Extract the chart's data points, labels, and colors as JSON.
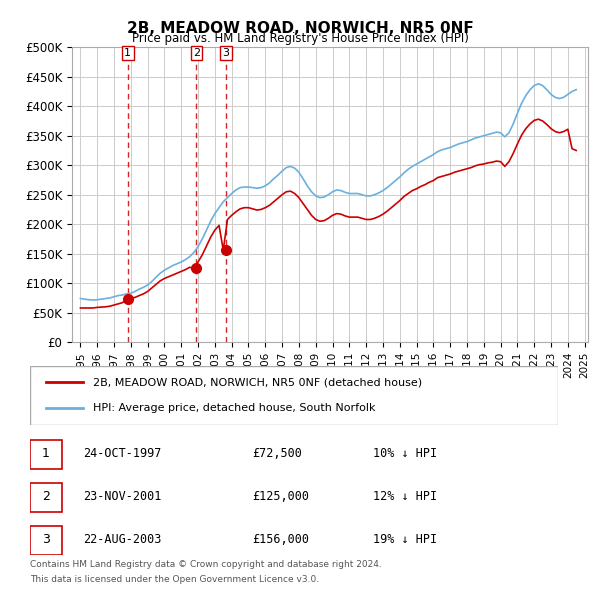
{
  "title": "2B, MEADOW ROAD, NORWICH, NR5 0NF",
  "subtitle": "Price paid vs. HM Land Registry's House Price Index (HPI)",
  "ylabel": "",
  "xlabel": "",
  "ylim": [
    0,
    500000
  ],
  "yticks": [
    0,
    50000,
    100000,
    150000,
    200000,
    250000,
    300000,
    350000,
    400000,
    450000,
    500000
  ],
  "ytick_labels": [
    "£0",
    "£50K",
    "£100K",
    "£150K",
    "£200K",
    "£250K",
    "£300K",
    "£350K",
    "£400K",
    "£450K",
    "£500K"
  ],
  "transactions": [
    {
      "num": 1,
      "date": "24-OCT-1997",
      "price": 72500,
      "year": 1997.82,
      "hpi_pct": "10% ↓ HPI"
    },
    {
      "num": 2,
      "date": "23-NOV-2001",
      "price": 125000,
      "year": 2001.9,
      "hpi_pct": "12% ↓ HPI"
    },
    {
      "num": 3,
      "date": "22-AUG-2003",
      "price": 156000,
      "year": 2003.65,
      "hpi_pct": "19% ↓ HPI"
    }
  ],
  "hpi_line_color": "#6ab0de",
  "property_line_color": "#cc0000",
  "marker_color": "#cc0000",
  "vline_color": "#cc0000",
  "grid_color": "#cccccc",
  "background_color": "#ffffff",
  "legend_label_property": "2B, MEADOW ROAD, NORWICH, NR5 0NF (detached house)",
  "legend_label_hpi": "HPI: Average price, detached house, South Norfolk",
  "footer1": "Contains HM Land Registry data © Crown copyright and database right 2024.",
  "footer2": "This data is licensed under the Open Government Licence v3.0.",
  "hpi_data_x": [
    1995.0,
    1995.25,
    1995.5,
    1995.75,
    1996.0,
    1996.25,
    1996.5,
    1996.75,
    1997.0,
    1997.25,
    1997.5,
    1997.75,
    1998.0,
    1998.25,
    1998.5,
    1998.75,
    1999.0,
    1999.25,
    1999.5,
    1999.75,
    2000.0,
    2000.25,
    2000.5,
    2000.75,
    2001.0,
    2001.25,
    2001.5,
    2001.75,
    2002.0,
    2002.25,
    2002.5,
    2002.75,
    2003.0,
    2003.25,
    2003.5,
    2003.75,
    2004.0,
    2004.25,
    2004.5,
    2004.75,
    2005.0,
    2005.25,
    2005.5,
    2005.75,
    2006.0,
    2006.25,
    2006.5,
    2006.75,
    2007.0,
    2007.25,
    2007.5,
    2007.75,
    2008.0,
    2008.25,
    2008.5,
    2008.75,
    2009.0,
    2009.25,
    2009.5,
    2009.75,
    2010.0,
    2010.25,
    2010.5,
    2010.75,
    2011.0,
    2011.25,
    2011.5,
    2011.75,
    2012.0,
    2012.25,
    2012.5,
    2012.75,
    2013.0,
    2013.25,
    2013.5,
    2013.75,
    2014.0,
    2014.25,
    2014.5,
    2014.75,
    2015.0,
    2015.25,
    2015.5,
    2015.75,
    2016.0,
    2016.25,
    2016.5,
    2016.75,
    2017.0,
    2017.25,
    2017.5,
    2017.75,
    2018.0,
    2018.25,
    2018.5,
    2018.75,
    2019.0,
    2019.25,
    2019.5,
    2019.75,
    2020.0,
    2020.25,
    2020.5,
    2020.75,
    2021.0,
    2021.25,
    2021.5,
    2021.75,
    2022.0,
    2022.25,
    2022.5,
    2022.75,
    2023.0,
    2023.25,
    2023.5,
    2023.75,
    2024.0,
    2024.25,
    2024.5
  ],
  "hpi_data_y": [
    74000,
    73000,
    72000,
    71500,
    72000,
    73000,
    74000,
    75000,
    77000,
    79000,
    80000,
    82000,
    83000,
    86000,
    90000,
    93000,
    97000,
    103000,
    110000,
    117000,
    122000,
    126000,
    130000,
    133000,
    136000,
    140000,
    145000,
    152000,
    162000,
    175000,
    190000,
    205000,
    218000,
    228000,
    238000,
    245000,
    252000,
    258000,
    262000,
    263000,
    263000,
    262000,
    261000,
    262000,
    265000,
    270000,
    277000,
    283000,
    290000,
    296000,
    298000,
    295000,
    288000,
    277000,
    265000,
    255000,
    248000,
    245000,
    246000,
    250000,
    255000,
    258000,
    257000,
    254000,
    252000,
    252000,
    252000,
    250000,
    248000,
    248000,
    250000,
    253000,
    257000,
    262000,
    268000,
    274000,
    280000,
    287000,
    293000,
    298000,
    302000,
    306000,
    310000,
    314000,
    318000,
    323000,
    326000,
    328000,
    330000,
    333000,
    336000,
    338000,
    340000,
    343000,
    346000,
    348000,
    350000,
    352000,
    354000,
    356000,
    355000,
    348000,
    355000,
    370000,
    388000,
    405000,
    418000,
    428000,
    435000,
    438000,
    435000,
    428000,
    420000,
    415000,
    413000,
    415000,
    420000,
    425000,
    428000
  ],
  "property_data_x": [
    1995.0,
    1995.25,
    1995.5,
    1995.75,
    1996.0,
    1996.25,
    1996.5,
    1996.75,
    1997.0,
    1997.25,
    1997.5,
    1997.75,
    1998.0,
    1998.25,
    1998.5,
    1998.75,
    1999.0,
    1999.25,
    1999.5,
    1999.75,
    2000.0,
    2000.25,
    2000.5,
    2000.75,
    2001.0,
    2001.25,
    2001.5,
    2001.75,
    2002.0,
    2002.25,
    2002.5,
    2002.75,
    2003.0,
    2003.25,
    2003.5,
    2003.75,
    2004.0,
    2004.25,
    2004.5,
    2004.75,
    2005.0,
    2005.25,
    2005.5,
    2005.75,
    2006.0,
    2006.25,
    2006.5,
    2006.75,
    2007.0,
    2007.25,
    2007.5,
    2007.75,
    2008.0,
    2008.25,
    2008.5,
    2008.75,
    2009.0,
    2009.25,
    2009.5,
    2009.75,
    2010.0,
    2010.25,
    2010.5,
    2010.75,
    2011.0,
    2011.25,
    2011.5,
    2011.75,
    2012.0,
    2012.25,
    2012.5,
    2012.75,
    2013.0,
    2013.25,
    2013.5,
    2013.75,
    2014.0,
    2014.25,
    2014.5,
    2014.75,
    2015.0,
    2015.25,
    2015.5,
    2015.75,
    2016.0,
    2016.25,
    2016.5,
    2016.75,
    2017.0,
    2017.25,
    2017.5,
    2017.75,
    2018.0,
    2018.25,
    2018.5,
    2018.75,
    2019.0,
    2019.25,
    2019.5,
    2019.75,
    2020.0,
    2020.25,
    2020.5,
    2020.75,
    2021.0,
    2021.25,
    2021.5,
    2021.75,
    2022.0,
    2022.25,
    2022.5,
    2022.75,
    2023.0,
    2023.25,
    2023.5,
    2023.75,
    2024.0,
    2024.25,
    2024.5
  ],
  "property_data_y": [
    58000,
    58000,
    58000,
    58000,
    59000,
    59500,
    60000,
    61000,
    63000,
    65000,
    67000,
    72500,
    74000,
    76000,
    79000,
    82000,
    86000,
    92000,
    98000,
    104000,
    108000,
    111000,
    114000,
    117000,
    120000,
    123000,
    127000,
    125000,
    136000,
    148000,
    163000,
    178000,
    190000,
    198000,
    156000,
    208000,
    215000,
    221000,
    226000,
    228000,
    228000,
    226000,
    224000,
    225000,
    228000,
    232000,
    238000,
    244000,
    250000,
    255000,
    256000,
    252000,
    245000,
    235000,
    225000,
    215000,
    208000,
    205000,
    206000,
    210000,
    215000,
    218000,
    217000,
    214000,
    212000,
    212000,
    212000,
    210000,
    208000,
    208000,
    210000,
    213000,
    217000,
    222000,
    228000,
    234000,
    240000,
    247000,
    252000,
    257000,
    260000,
    264000,
    267000,
    271000,
    274000,
    279000,
    281000,
    283000,
    285000,
    288000,
    290000,
    292000,
    294000,
    296000,
    299000,
    301000,
    302000,
    304000,
    305000,
    307000,
    306000,
    298000,
    306000,
    320000,
    336000,
    351000,
    362000,
    370000,
    376000,
    378000,
    375000,
    369000,
    362000,
    357000,
    355000,
    357000,
    361000,
    328000,
    325000
  ]
}
